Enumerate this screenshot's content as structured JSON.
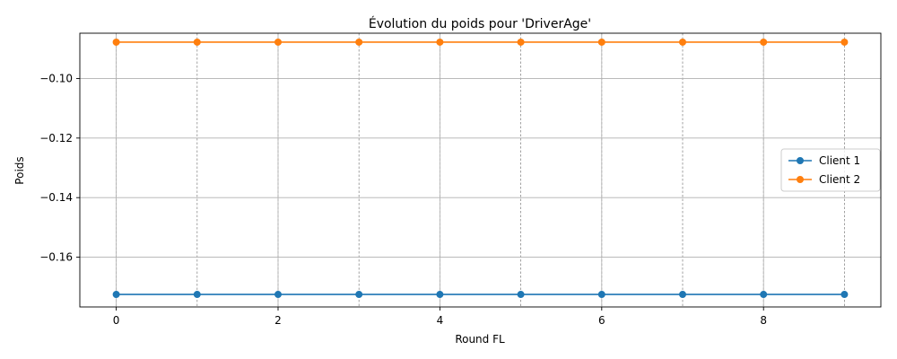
{
  "chart_data": {
    "type": "line",
    "title": "Évolution du poids pour 'DriverAge'",
    "xlabel": "Round FL",
    "ylabel": "Poids",
    "x": [
      0,
      1,
      2,
      3,
      4,
      5,
      6,
      7,
      8,
      9
    ],
    "xticks": [
      0,
      2,
      4,
      6,
      8
    ],
    "xtick_labels": [
      "0",
      "2",
      "4",
      "6",
      "8"
    ],
    "yticks": [
      -0.16,
      -0.14,
      -0.12,
      -0.1
    ],
    "ytick_labels": [
      "−0.16",
      "−0.14",
      "−0.12",
      "−0.10"
    ],
    "xlim": [
      -0.45,
      9.45
    ],
    "ylim": [
      -0.1767,
      -0.0848
    ],
    "grid": true,
    "legend_position": "center-right",
    "series": [
      {
        "name": "Client 1",
        "color": "#1f77b4",
        "values": [
          -0.1725,
          -0.1725,
          -0.1725,
          -0.1725,
          -0.1725,
          -0.1725,
          -0.1725,
          -0.1725,
          -0.1725,
          -0.1725
        ]
      },
      {
        "name": "Client 2",
        "color": "#ff7f0e",
        "values": [
          -0.0878,
          -0.0878,
          -0.0878,
          -0.0878,
          -0.0878,
          -0.0878,
          -0.0878,
          -0.0878,
          -0.0878,
          -0.0878
        ]
      }
    ]
  }
}
